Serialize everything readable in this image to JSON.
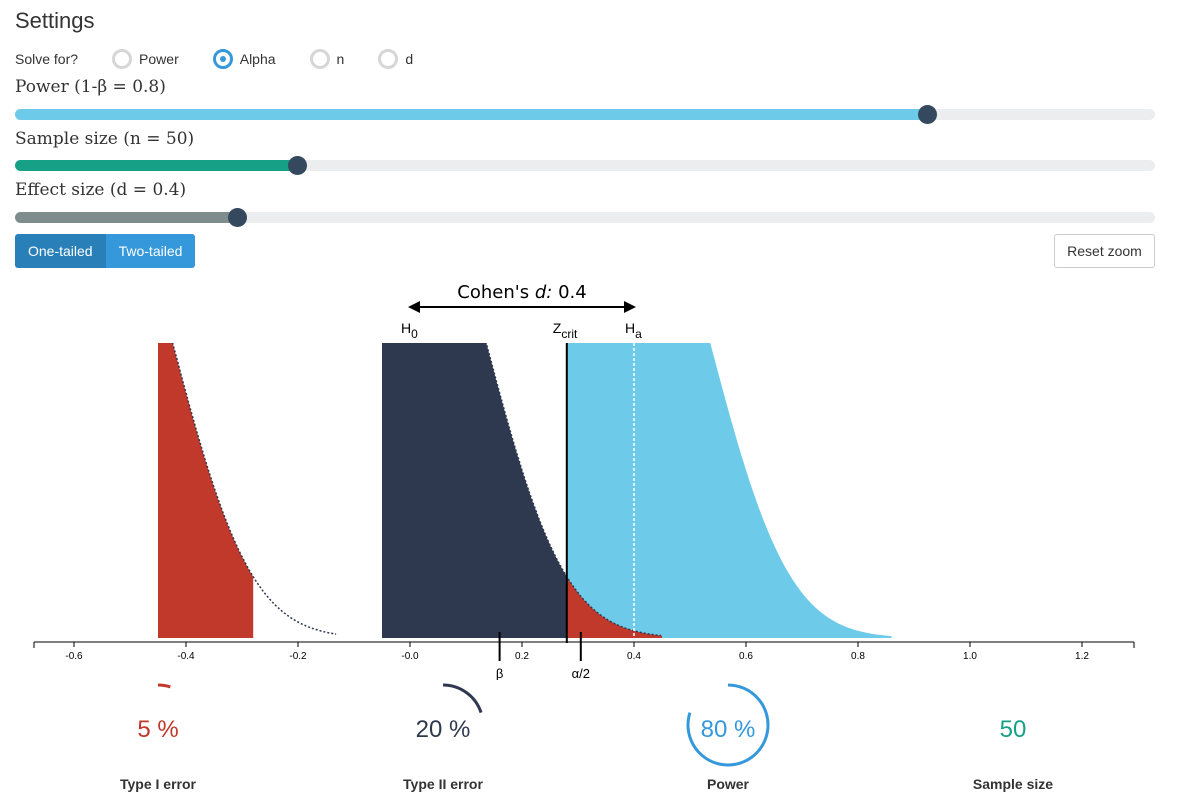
{
  "settings": {
    "title": "Settings",
    "solve_label": "Solve for?",
    "options": [
      {
        "label": "Power",
        "checked": false
      },
      {
        "label": "Alpha",
        "checked": true
      },
      {
        "label": "n",
        "checked": false
      },
      {
        "label": "d",
        "checked": false
      }
    ]
  },
  "sliders": [
    {
      "label": "Power (1-β = 0.8)",
      "fraction": 0.8,
      "color": "#6dcbe9"
    },
    {
      "label": "Sample size (n = 50)",
      "fraction": 0.247,
      "color": "#16a085"
    },
    {
      "label": "Effect size (d = 0.4)",
      "fraction": 0.195,
      "color": "#7f8c8d"
    }
  ],
  "buttons": {
    "one_tailed": "One-tailed",
    "two_tailed": "Two-tailed",
    "reset": "Reset zoom"
  },
  "chart_data": {
    "type": "area",
    "annotation_prefix": "Cohen's ",
    "annotation_var": "d:",
    "annotation_value": "0.4",
    "h0_label": "H",
    "h0_sub": "0",
    "ha_label": "H",
    "ha_sub": "a",
    "zcrit_label": "Z",
    "zcrit_sub": "crit",
    "beta_label": "β",
    "alpha_label": "α/2",
    "h0_mean": 0.0,
    "ha_mean": 0.4,
    "z_crit": 0.28,
    "beta_marker": 0.16,
    "alpha_marker": 0.305,
    "xlim": [
      -0.7,
      1.3
    ],
    "ticks": [
      -0.6,
      -0.4,
      -0.2,
      -0.0,
      0.2,
      0.4,
      0.6,
      0.8,
      1.0,
      1.2
    ],
    "tick_labels": [
      "-0.6",
      "-0.4",
      "-0.2",
      "-0.0",
      "0.2",
      "0.4",
      "0.6",
      "0.8",
      "1.0",
      "1.2"
    ],
    "colors": {
      "power": "#6dcbe9",
      "beta": "#2e384f",
      "alpha": "#c0392b",
      "axis": "#000000"
    }
  },
  "stats": [
    {
      "value": "5 %",
      "label": "Type I error",
      "color": "#c0392b",
      "fraction": 0.05
    },
    {
      "value": "20 %",
      "label": "Type II error",
      "color": "#2e384f",
      "fraction": 0.2
    },
    {
      "value": "80 %",
      "label": "Power",
      "color": "#3498db",
      "fraction": 0.8
    },
    {
      "value": "50",
      "label": "Sample size",
      "color": "#16a085",
      "fraction": 0
    }
  ]
}
